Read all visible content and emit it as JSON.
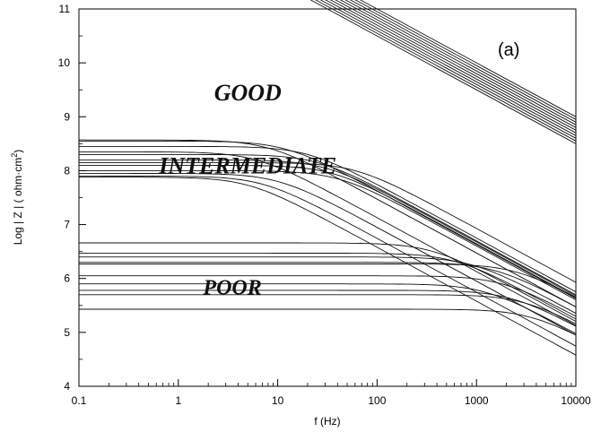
{
  "chart_data": {
    "type": "line",
    "title": "",
    "panel_label": "(a)",
    "xlabel": "f (Hz)",
    "ylabel": "Log | Z | ( ohm·cm",
    "ylabel_sup": "2",
    "ylabel_end": ")",
    "xscale": "log",
    "xlim": [
      0.1,
      10000
    ],
    "ylim": [
      4,
      11
    ],
    "grid": false,
    "x_ticks": [
      {
        "value": 0.1,
        "label": "0.1"
      },
      {
        "value": 1,
        "label": "1"
      },
      {
        "value": 10,
        "label": "10"
      },
      {
        "value": 100,
        "label": "100"
      },
      {
        "value": 1000,
        "label": "1000"
      },
      {
        "value": 10000,
        "label": "10000"
      }
    ],
    "y_ticks": [
      {
        "value": 4,
        "label": "4"
      },
      {
        "value": 5,
        "label": "5"
      },
      {
        "value": 6,
        "label": "6"
      },
      {
        "value": 7,
        "label": "7"
      },
      {
        "value": 8,
        "label": "8"
      },
      {
        "value": 9,
        "label": "9"
      },
      {
        "value": 10,
        "label": "10"
      },
      {
        "value": 11,
        "label": "11"
      }
    ],
    "annotations": [
      {
        "text": "GOOD",
        "x": 5,
        "y": 9.45
      },
      {
        "text": "INTERMEDIATE",
        "x": 5,
        "y": 8.1
      },
      {
        "text": "POOR",
        "x": 3.5,
        "y": 5.85
      }
    ],
    "curve_model": "log|Z| = logR - 0.5*log10(1 + (f/fc)^2)",
    "series": [
      {
        "group": "GOOD",
        "logR": 16.7,
        "fc": 0.0001
      },
      {
        "group": "GOOD",
        "logR": 16.9,
        "fc": 0.0001
      },
      {
        "group": "GOOD",
        "logR": 16.6,
        "fc": 0.0001
      },
      {
        "group": "GOOD",
        "logR": 17.0,
        "fc": 0.0001
      },
      {
        "group": "GOOD",
        "logR": 16.75,
        "fc": 0.0001
      },
      {
        "group": "GOOD",
        "logR": 16.85,
        "fc": 0.0001
      },
      {
        "group": "GOOD",
        "logR": 16.65,
        "fc": 0.0001
      },
      {
        "group": "GOOD",
        "logR": 16.55,
        "fc": 0.0001
      },
      {
        "group": "GOOD",
        "logR": 16.95,
        "fc": 0.0001
      },
      {
        "group": "GOOD",
        "logR": 16.8,
        "fc": 0.0001
      },
      {
        "group": "GOOD",
        "logR": 16.5,
        "fc": 0.0001
      },
      {
        "group": "INTERMEDIATE",
        "logR": 8.57,
        "fc": 8
      },
      {
        "group": "INTERMEDIATE",
        "logR": 8.55,
        "fc": 12
      },
      {
        "group": "INTERMEDIATE",
        "logR": 8.45,
        "fc": 20
      },
      {
        "group": "INTERMEDIATE",
        "logR": 8.3,
        "fc": 25
      },
      {
        "group": "INTERMEDIATE",
        "logR": 8.2,
        "fc": 30
      },
      {
        "group": "INTERMEDIATE",
        "logR": 8.1,
        "fc": 35
      },
      {
        "group": "INTERMEDIATE",
        "logR": 8.0,
        "fc": 40
      },
      {
        "group": "INTERMEDIATE",
        "logR": 7.95,
        "fc": 10
      },
      {
        "group": "INTERMEDIATE",
        "logR": 7.9,
        "fc": 7
      },
      {
        "group": "INTERMEDIATE",
        "logR": 7.88,
        "fc": 5
      },
      {
        "group": "INTERMEDIATE",
        "logR": 8.35,
        "fc": 6
      },
      {
        "group": "INTERMEDIATE",
        "logR": 8.15,
        "fc": 60
      },
      {
        "group": "POOR",
        "logR": 6.66,
        "fc": 350
      },
      {
        "group": "POOR",
        "logR": 6.47,
        "fc": 600
      },
      {
        "group": "POOR",
        "logR": 6.4,
        "fc": 900
      },
      {
        "group": "POOR",
        "logR": 6.3,
        "fc": 1500
      },
      {
        "group": "POOR",
        "logR": 6.27,
        "fc": 2500
      },
      {
        "group": "POOR",
        "logR": 6.05,
        "fc": 1800
      },
      {
        "group": "POOR",
        "logR": 5.9,
        "fc": 1200
      },
      {
        "group": "POOR",
        "logR": 5.78,
        "fc": 2200
      },
      {
        "group": "POOR",
        "logR": 5.7,
        "fc": 3000
      },
      {
        "group": "POOR",
        "logR": 5.43,
        "fc": 3500
      }
    ]
  }
}
